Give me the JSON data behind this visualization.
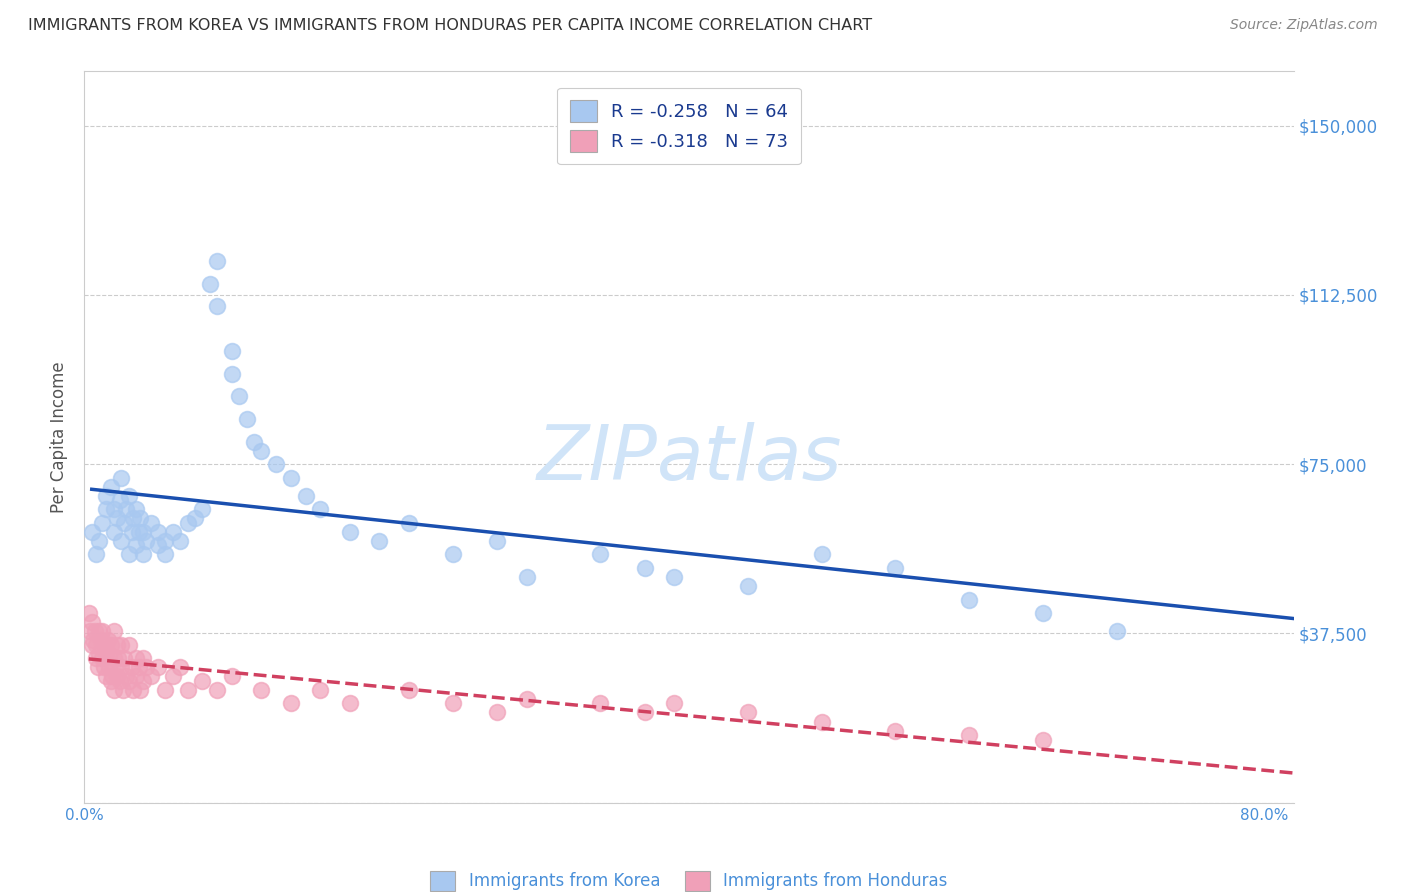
{
  "title": "IMMIGRANTS FROM KOREA VS IMMIGRANTS FROM HONDURAS PER CAPITA INCOME CORRELATION CHART",
  "source": "Source: ZipAtlas.com",
  "ylabel": "Per Capita Income",
  "y_ticks": [
    0,
    37500,
    75000,
    112500,
    150000
  ],
  "y_tick_labels": [
    "",
    "$37,500",
    "$75,000",
    "$112,500",
    "$150,000"
  ],
  "x_ticks": [
    0.0,
    0.1,
    0.2,
    0.3,
    0.4,
    0.5,
    0.6,
    0.7,
    0.8
  ],
  "x_tick_labels": [
    "0.0%",
    "",
    "",
    "",
    "",
    "",
    "",
    "",
    "80.0%"
  ],
  "korea_color": "#A8C8F0",
  "honduras_color": "#F0A0B8",
  "korea_line_color": "#1A4FAF",
  "honduras_line_color": "#D04060",
  "korea_R": -0.258,
  "korea_N": 64,
  "honduras_R": -0.318,
  "honduras_N": 73,
  "watermark": "ZIPatlas",
  "watermark_color": "#D0E4F8",
  "background_color": "#FFFFFF",
  "grid_color": "#CCCCCC",
  "title_color": "#333333",
  "source_color": "#888888",
  "legend_text_color": "#1A3A8F",
  "axis_tick_color": "#4A90D9",
  "korea_scatter_x": [
    0.005,
    0.008,
    0.01,
    0.012,
    0.015,
    0.015,
    0.018,
    0.02,
    0.02,
    0.022,
    0.024,
    0.025,
    0.025,
    0.027,
    0.028,
    0.03,
    0.03,
    0.032,
    0.033,
    0.035,
    0.035,
    0.037,
    0.038,
    0.04,
    0.04,
    0.042,
    0.045,
    0.05,
    0.05,
    0.055,
    0.055,
    0.06,
    0.065,
    0.07,
    0.075,
    0.08,
    0.085,
    0.09,
    0.09,
    0.1,
    0.1,
    0.105,
    0.11,
    0.115,
    0.12,
    0.13,
    0.14,
    0.15,
    0.16,
    0.18,
    0.2,
    0.22,
    0.25,
    0.28,
    0.3,
    0.35,
    0.38,
    0.4,
    0.45,
    0.5,
    0.55,
    0.6,
    0.65,
    0.7
  ],
  "korea_scatter_y": [
    60000,
    55000,
    58000,
    62000,
    65000,
    68000,
    70000,
    65000,
    60000,
    63000,
    67000,
    72000,
    58000,
    62000,
    65000,
    68000,
    55000,
    60000,
    63000,
    65000,
    57000,
    60000,
    63000,
    55000,
    60000,
    58000,
    62000,
    60000,
    57000,
    55000,
    58000,
    60000,
    58000,
    62000,
    63000,
    65000,
    115000,
    120000,
    110000,
    100000,
    95000,
    90000,
    85000,
    80000,
    78000,
    75000,
    72000,
    68000,
    65000,
    60000,
    58000,
    62000,
    55000,
    58000,
    50000,
    55000,
    52000,
    50000,
    48000,
    55000,
    52000,
    45000,
    42000,
    38000
  ],
  "honduras_scatter_x": [
    0.003,
    0.004,
    0.005,
    0.005,
    0.006,
    0.007,
    0.008,
    0.008,
    0.009,
    0.01,
    0.01,
    0.011,
    0.012,
    0.012,
    0.013,
    0.014,
    0.015,
    0.015,
    0.016,
    0.017,
    0.017,
    0.018,
    0.018,
    0.019,
    0.02,
    0.02,
    0.02,
    0.021,
    0.022,
    0.022,
    0.023,
    0.024,
    0.025,
    0.025,
    0.026,
    0.027,
    0.028,
    0.03,
    0.03,
    0.032,
    0.033,
    0.035,
    0.035,
    0.037,
    0.038,
    0.04,
    0.04,
    0.042,
    0.045,
    0.05,
    0.055,
    0.06,
    0.065,
    0.07,
    0.08,
    0.09,
    0.1,
    0.12,
    0.14,
    0.16,
    0.18,
    0.22,
    0.25,
    0.28,
    0.3,
    0.35,
    0.38,
    0.4,
    0.45,
    0.5,
    0.55,
    0.6,
    0.65
  ],
  "honduras_scatter_y": [
    42000,
    38000,
    40000,
    35000,
    36000,
    38000,
    32000,
    35000,
    30000,
    38000,
    33000,
    36000,
    32000,
    38000,
    30000,
    35000,
    33000,
    28000,
    36000,
    30000,
    33000,
    27000,
    35000,
    28000,
    38000,
    32000,
    25000,
    30000,
    35000,
    28000,
    32000,
    27000,
    35000,
    30000,
    25000,
    32000,
    28000,
    35000,
    27000,
    30000,
    25000,
    32000,
    28000,
    30000,
    25000,
    32000,
    27000,
    30000,
    28000,
    30000,
    25000,
    28000,
    30000,
    25000,
    27000,
    25000,
    28000,
    25000,
    22000,
    25000,
    22000,
    25000,
    22000,
    20000,
    23000,
    22000,
    20000,
    22000,
    20000,
    18000,
    16000,
    15000,
    14000
  ]
}
